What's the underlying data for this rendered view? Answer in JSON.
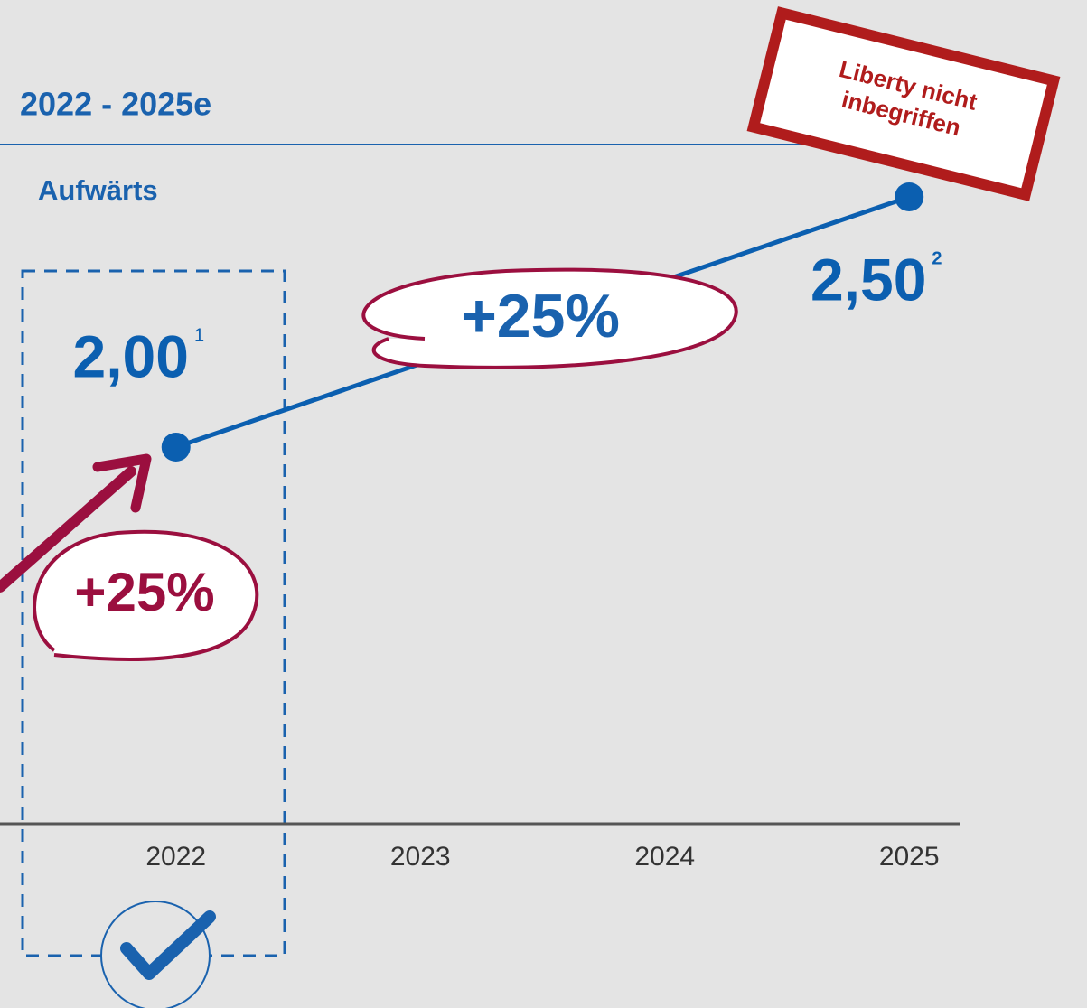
{
  "chart_data": {
    "type": "line",
    "title": "2022 - 2025e",
    "subtitle": "Aufwärts",
    "x": [
      2022,
      2025
    ],
    "values": [
      2.0,
      2.5
    ],
    "value_labels": [
      "2,00",
      "2,50"
    ],
    "footnotes": [
      "1",
      "2"
    ],
    "xlim": [
      2021.28,
      2025.21
    ],
    "xticks": [
      2022,
      2023,
      2024,
      2025
    ],
    "color": "#0b5fb0",
    "annotations": [
      "+25%",
      "+25%"
    ],
    "stamp": [
      "Liberty nicht",
      "inbegriffen"
    ],
    "grid": false
  }
}
